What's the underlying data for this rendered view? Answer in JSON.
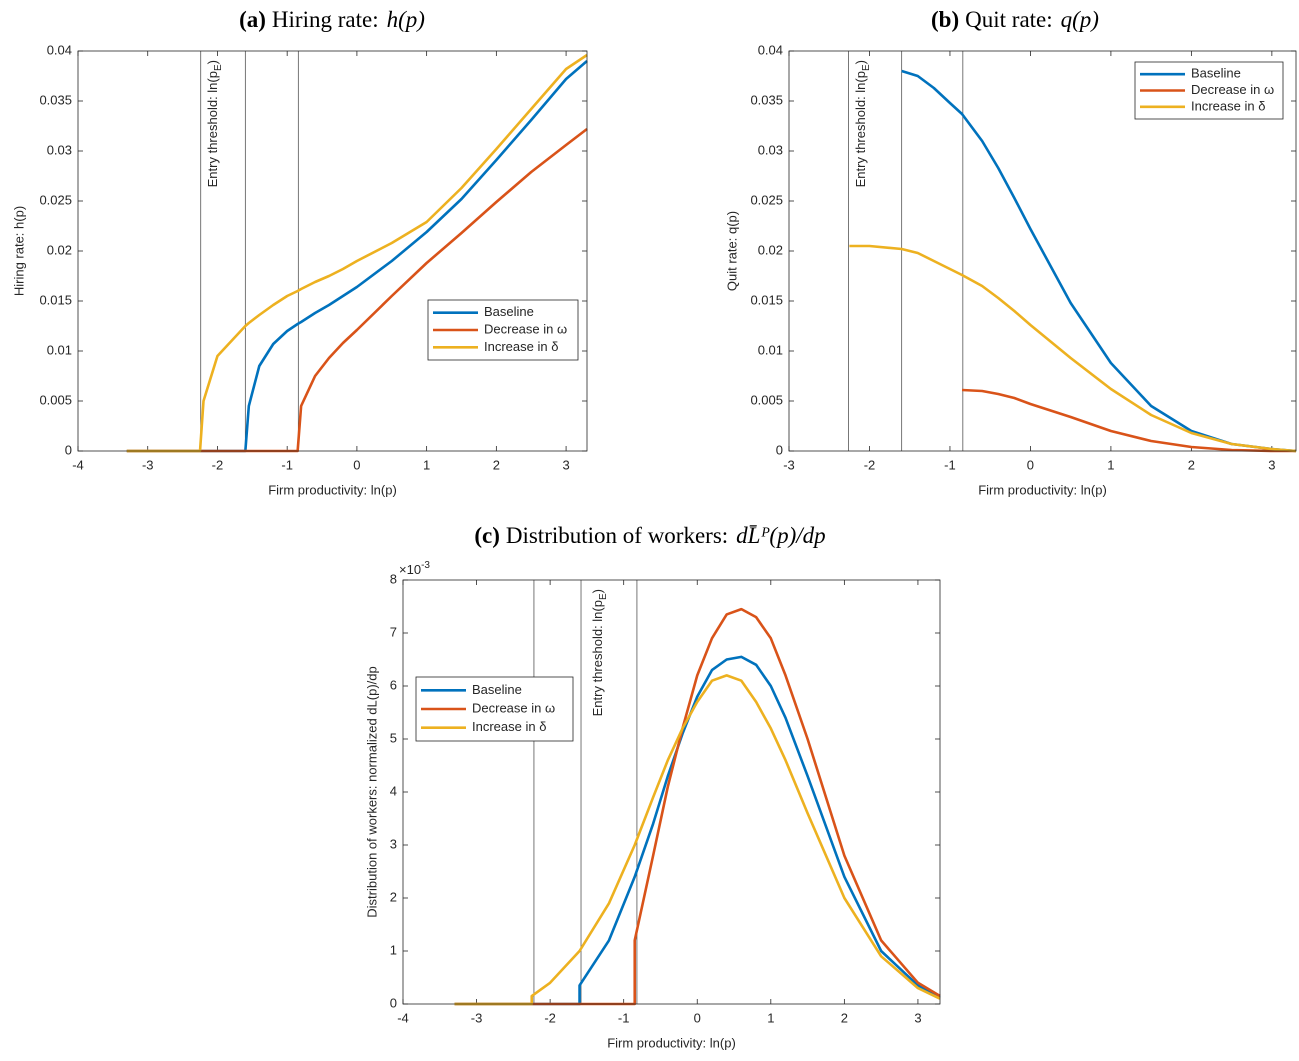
{
  "chart_data": [
    {
      "type": "line",
      "label": "(a)",
      "title": "Hiring rate:",
      "title_math": "h(p)",
      "x_label": "Firm productivity: ln(p)",
      "y_label": "Hiring rate: h(p)",
      "annotation": {
        "text": "Entry threshold: ln(p",
        "sub": "E",
        "close": ")"
      },
      "vlines": [
        -2.24,
        -1.6,
        -0.84
      ],
      "x": [
        -3.3,
        -2.25,
        -2.2,
        -2,
        -1.6,
        -1.55,
        -1.4,
        -1.2,
        -1,
        -0.85,
        -0.8,
        -0.6,
        -0.4,
        -0.2,
        0,
        0.5,
        1,
        1.5,
        2,
        2.5,
        3,
        3.3
      ],
      "series": [
        {
          "name": "Baseline",
          "color": "#0072BD",
          "values": [
            0,
            0,
            0,
            0,
            0,
            0.0045,
            0.0085,
            0.0107,
            0.012,
            0.0127,
            0.0129,
            0.0138,
            0.0146,
            0.0155,
            0.0164,
            0.019,
            0.0219,
            0.0252,
            0.0291,
            0.0331,
            0.0372,
            0.039
          ]
        },
        {
          "name": "Decrease in ω",
          "color": "#D95319",
          "values": [
            0,
            0,
            0,
            0,
            0,
            0,
            0,
            0,
            0,
            0,
            0.0045,
            0.0075,
            0.0093,
            0.0108,
            0.0121,
            0.0155,
            0.0188,
            0.0218,
            0.0249,
            0.0279,
            0.0306,
            0.0322
          ]
        },
        {
          "name": "Increase in δ",
          "color": "#EDB120",
          "values": [
            0,
            0,
            0.005,
            0.0095,
            0.0125,
            0.0128,
            0.0136,
            0.0146,
            0.0155,
            0.016,
            0.0162,
            0.0169,
            0.0175,
            0.0182,
            0.019,
            0.0208,
            0.0229,
            0.0263,
            0.0302,
            0.0342,
            0.0382,
            0.0396
          ]
        }
      ],
      "xlim": [
        -4,
        3.3
      ],
      "xticks": [
        -4,
        -3,
        -2,
        -1,
        0,
        1,
        2,
        3
      ],
      "ylim": [
        0,
        0.04
      ],
      "yticks": [
        0,
        0.005,
        0.01,
        0.015,
        0.02,
        0.025,
        0.03,
        0.035,
        0.04
      ],
      "legend": "lower right"
    },
    {
      "type": "line",
      "label": "(b)",
      "title": "Quit rate:",
      "title_math": "q(p)",
      "x_label": "Firm productivity: ln(p)",
      "y_label": "Quit rate: q(p)",
      "annotation": {
        "text": "Entry threshold: ln(p",
        "sub": "E",
        "close": ")"
      },
      "vlines": [
        -2.26,
        -1.6,
        -0.84
      ],
      "x": [
        -2.25,
        -2,
        -1.6,
        -1.4,
        -1.2,
        -1,
        -0.85,
        -0.6,
        -0.4,
        -0.2,
        0,
        0.5,
        1,
        1.5,
        2,
        2.5,
        3,
        3.3
      ],
      "series": [
        {
          "name": "Baseline",
          "color": "#0072BD",
          "values": [
            null,
            null,
            0.038,
            0.0375,
            0.0363,
            0.0348,
            0.0337,
            0.031,
            0.0283,
            0.0253,
            0.0222,
            0.0148,
            0.0088,
            0.0045,
            0.002,
            0.0007,
            0.0002,
            0
          ]
        },
        {
          "name": "Decrease in ω",
          "color": "#D95319",
          "values": [
            null,
            null,
            null,
            null,
            null,
            null,
            0.0061,
            0.006,
            0.0057,
            0.0053,
            0.0047,
            0.0034,
            0.002,
            0.001,
            0.0004,
            0.0001,
            0,
            0
          ]
        },
        {
          "name": "Increase in δ",
          "color": "#EDB120",
          "values": [
            0.0205,
            0.0205,
            0.0202,
            0.0198,
            0.019,
            0.0182,
            0.0176,
            0.0165,
            0.0153,
            0.014,
            0.0126,
            0.0093,
            0.0062,
            0.0036,
            0.0018,
            0.0007,
            0.0002,
            0
          ]
        }
      ],
      "xlim": [
        -3,
        3.3
      ],
      "xticks": [
        -3,
        -2,
        -1,
        0,
        1,
        2,
        3
      ],
      "ylim": [
        0,
        0.04
      ],
      "yticks": [
        0,
        0.005,
        0.01,
        0.015,
        0.02,
        0.025,
        0.03,
        0.035,
        0.04
      ],
      "legend": "upper right"
    },
    {
      "type": "line",
      "label": "(c)",
      "title": "Distribution of workers:",
      "title_math": "dL̄ᴾ(p)/dp",
      "x_label": "Firm productivity: ln(p)",
      "y_label": "Distribution of workers: normalized dL(p)/dp",
      "y_scale_label": {
        "base": "×10",
        "exponent": "-3"
      },
      "annotation": {
        "text": "Entry threshold: ln(p",
        "sub": "E",
        "close": ")"
      },
      "vlines": [
        -2.22,
        -1.58,
        -0.82
      ],
      "x": [
        -3.3,
        -2.25,
        -2.25,
        -2,
        -1.6,
        -1.6,
        -1.2,
        -0.85,
        -0.85,
        -0.6,
        -0.4,
        -0.2,
        0,
        0.2,
        0.4,
        0.6,
        0.8,
        1,
        1.2,
        1.5,
        2,
        2.5,
        3,
        3.3
      ],
      "series": [
        {
          "name": "Baseline",
          "color": "#0072BD",
          "values": [
            0,
            0,
            0,
            0,
            0,
            0.35,
            1.2,
            2.4,
            2.4,
            3.4,
            4.3,
            5.1,
            5.8,
            6.3,
            6.5,
            6.55,
            6.4,
            6.0,
            5.4,
            4.3,
            2.4,
            1.0,
            0.35,
            0.12
          ]
        },
        {
          "name": "Decrease in ω",
          "color": "#D95319",
          "values": [
            0,
            0,
            0,
            0,
            0,
            0,
            0,
            0,
            1.2,
            2.8,
            4.1,
            5.2,
            6.2,
            6.9,
            7.35,
            7.45,
            7.3,
            6.9,
            6.2,
            5.0,
            2.8,
            1.2,
            0.4,
            0.15
          ]
        },
        {
          "name": "Increase in δ",
          "color": "#EDB120",
          "values": [
            0,
            0,
            0.15,
            0.4,
            1.0,
            1.0,
            1.9,
            3.0,
            3.0,
            3.9,
            4.6,
            5.2,
            5.7,
            6.1,
            6.2,
            6.1,
            5.7,
            5.2,
            4.6,
            3.6,
            2.0,
            0.9,
            0.3,
            0.1
          ]
        }
      ],
      "xlim": [
        -4,
        3.3
      ],
      "xticks": [
        -4,
        -3,
        -2,
        -1,
        0,
        1,
        2,
        3
      ],
      "ylim": [
        0,
        8
      ],
      "yticks": [
        0,
        1,
        2,
        3,
        4,
        5,
        6,
        7,
        8
      ],
      "legend": "upper left"
    }
  ]
}
